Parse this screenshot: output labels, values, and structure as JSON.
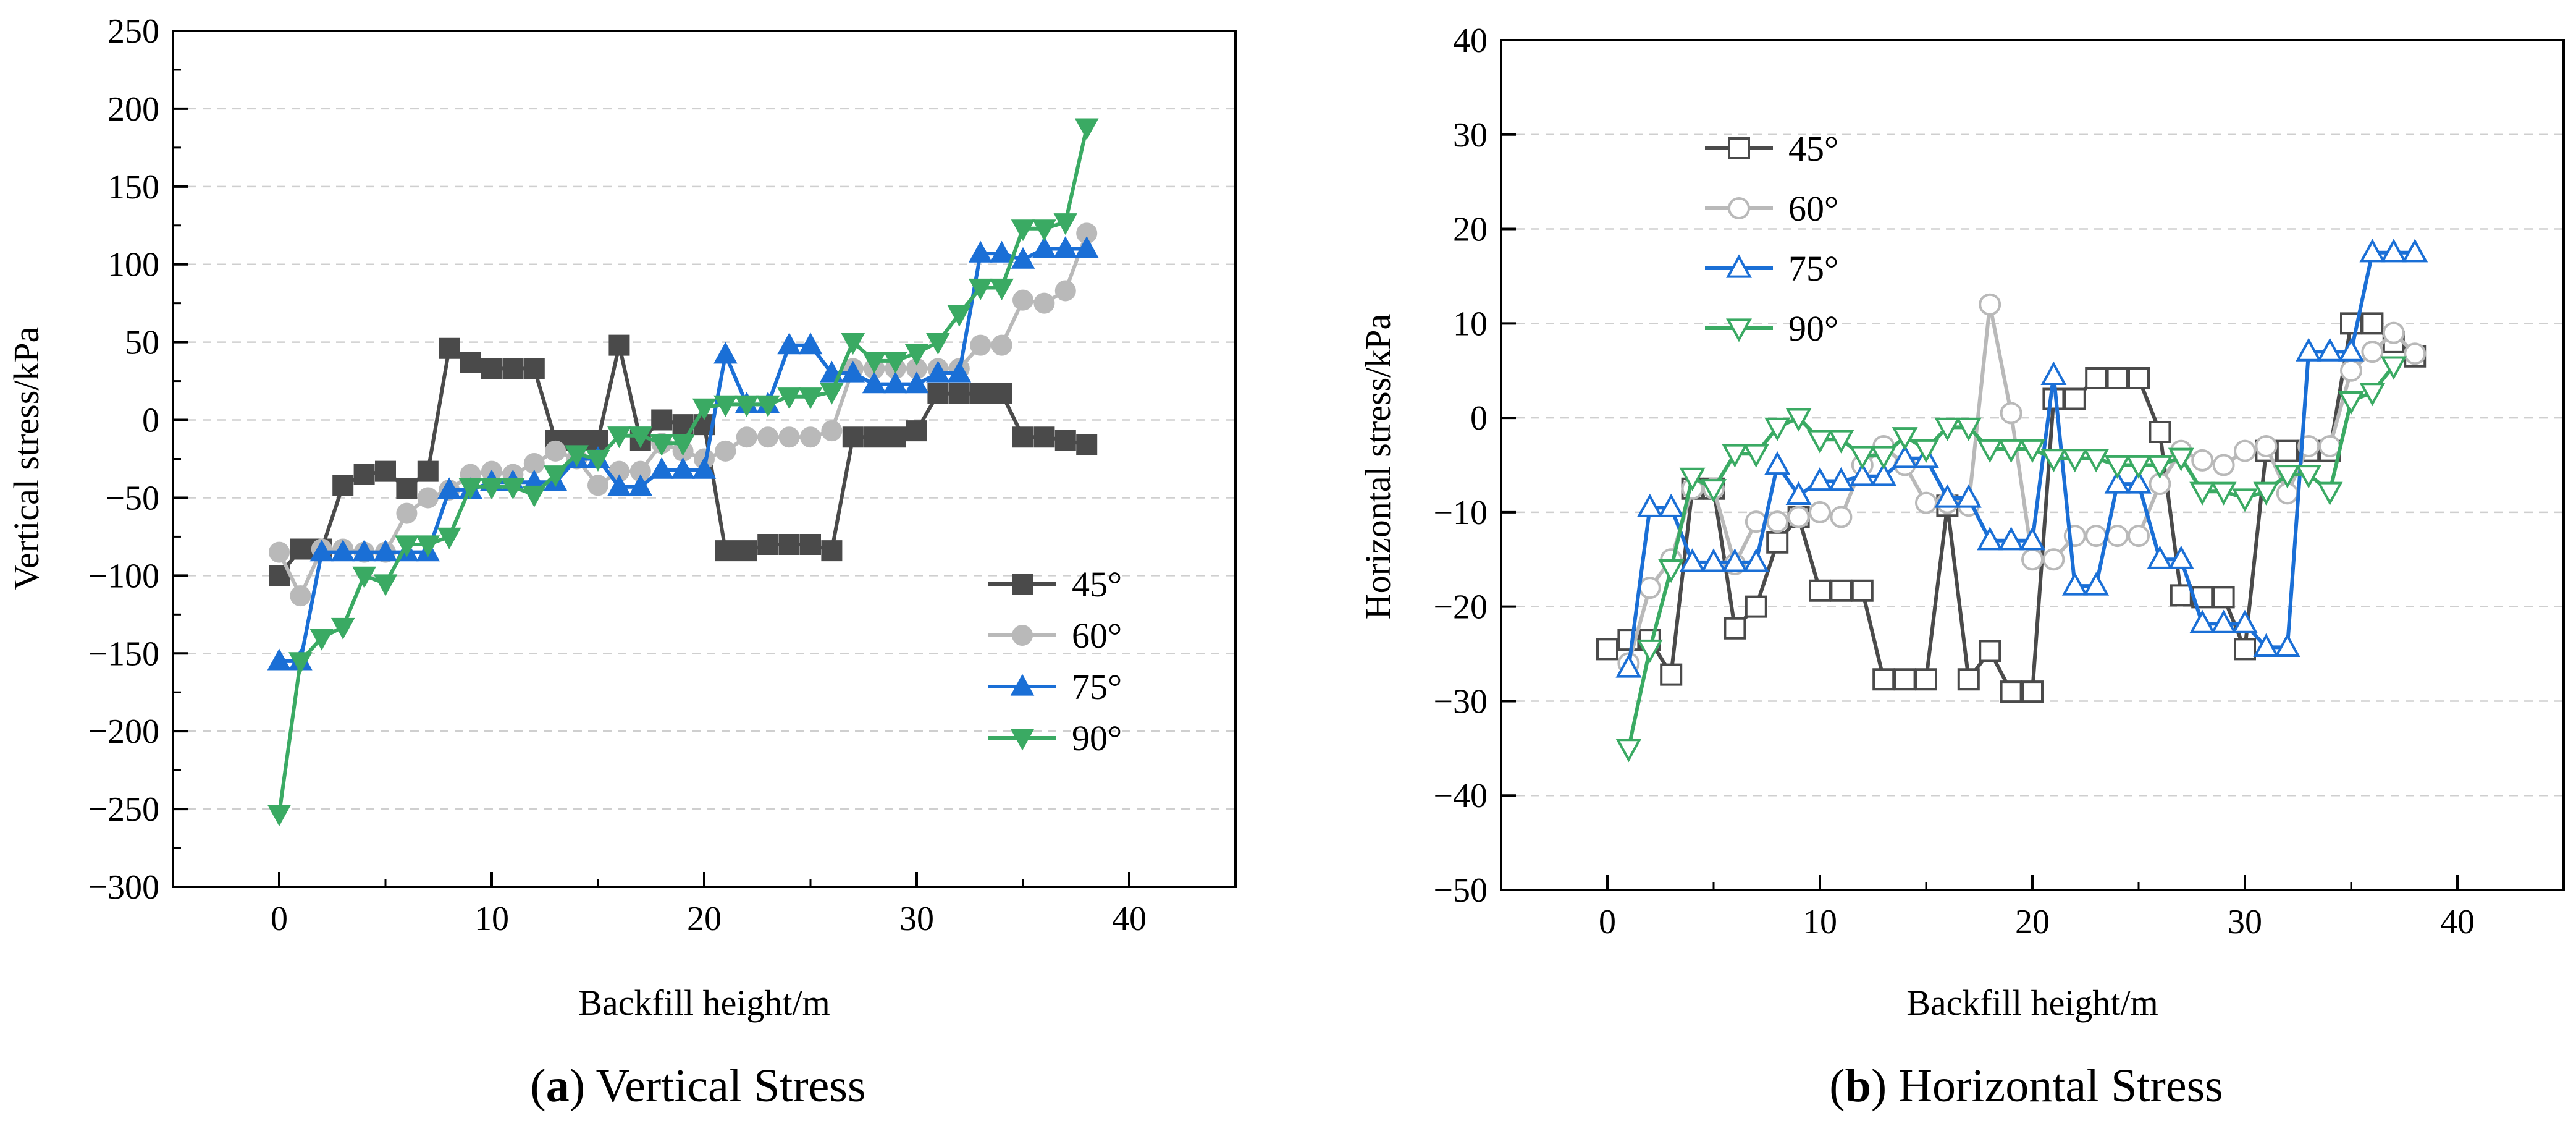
{
  "chart_data": [
    {
      "type": "line",
      "title": "Vertical Stress",
      "caption_letter": "a",
      "xlabel": "Backfill height/m",
      "ylabel": "Vertical stress/kPa",
      "xlim": [
        -5,
        45
      ],
      "ylim": [
        -300,
        250
      ],
      "xticks": [
        "0",
        "10",
        "20",
        "30",
        "40"
      ],
      "yticks": [
        "−300",
        "−250",
        "−200",
        "−150",
        "−100",
        "−50",
        "0",
        "50",
        "100",
        "150",
        "200",
        "250"
      ],
      "legend_position": "bottom-right",
      "x": [
        0,
        1,
        2,
        3,
        4,
        5,
        6,
        7,
        8,
        9,
        10,
        11,
        12,
        13,
        14,
        15,
        16,
        17,
        18,
        19,
        20,
        21,
        22,
        23,
        24,
        25,
        26,
        27,
        28,
        29,
        30,
        31,
        32,
        33,
        34,
        35,
        36,
        37,
        38
      ],
      "series": [
        {
          "name": "45°",
          "color": "#4a4a4a",
          "marker": "square",
          "filled": true,
          "values": [
            -100,
            -83,
            -83,
            -42,
            -35,
            -33,
            -44,
            -33,
            46,
            37,
            33,
            33,
            33,
            -13,
            -13,
            -13,
            48,
            -13,
            0,
            -3,
            -3,
            -84,
            -84,
            -80,
            -80,
            -80,
            -84,
            -11,
            -11,
            -11,
            -7,
            17,
            17,
            17,
            17,
            -11,
            -11,
            -13,
            -16
          ]
        },
        {
          "name": "60°",
          "color": "#b9b9b9",
          "marker": "circle",
          "filled": true,
          "values": [
            -85,
            -113,
            -83,
            -83,
            -85,
            -85,
            -60,
            -50,
            -45,
            -35,
            -33,
            -35,
            -28,
            -20,
            -25,
            -42,
            -33,
            -33,
            -15,
            -20,
            -25,
            -20,
            -11,
            -11,
            -11,
            -11,
            -7,
            33,
            33,
            33,
            33,
            33,
            33,
            48,
            48,
            77,
            75,
            83,
            120
          ]
        },
        {
          "name": "75°",
          "color": "#1a6fd6",
          "marker": "triangle-up",
          "filled": true,
          "values": [
            -155,
            -155,
            -85,
            -85,
            -85,
            -85,
            -85,
            -85,
            -45,
            -45,
            -40,
            -40,
            -40,
            -40,
            -25,
            -25,
            -43,
            -43,
            -32,
            -32,
            -32,
            42,
            10,
            10,
            48,
            48,
            30,
            30,
            23,
            23,
            23,
            30,
            30,
            107,
            107,
            103,
            110,
            110,
            110
          ]
        },
        {
          "name": "90°",
          "color": "#3aaa63",
          "marker": "triangle-down",
          "filled": true,
          "values": [
            -253,
            -155,
            -140,
            -133,
            -100,
            -105,
            -80,
            -80,
            -75,
            -43,
            -43,
            -43,
            -48,
            -35,
            -22,
            -25,
            -10,
            -10,
            -15,
            -15,
            8,
            10,
            10,
            10,
            15,
            15,
            18,
            50,
            38,
            38,
            43,
            50,
            68,
            85,
            85,
            123,
            123,
            127,
            188
          ]
        }
      ]
    },
    {
      "type": "line",
      "title": "Horizontal Stress",
      "caption_letter": "b",
      "xlabel": "Backfill height/m",
      "ylabel": "Horizontal stress/kPa",
      "xlim": [
        -5,
        45
      ],
      "ylim": [
        -50,
        40
      ],
      "xticks": [
        "0",
        "10",
        "20",
        "30",
        "40"
      ],
      "yticks": [
        "−50",
        "−40",
        "−30",
        "−20",
        "−10",
        "0",
        "10",
        "20",
        "30",
        "40"
      ],
      "legend_position": "top-left",
      "x": [
        0,
        1,
        2,
        3,
        4,
        5,
        6,
        7,
        8,
        9,
        10,
        11,
        12,
        13,
        14,
        15,
        16,
        17,
        18,
        19,
        20,
        21,
        22,
        23,
        24,
        25,
        26,
        27,
        28,
        29,
        30,
        31,
        32,
        33,
        34,
        35,
        36,
        37,
        38
      ],
      "series": [
        {
          "name": "45°",
          "color": "#4a4a4a",
          "marker": "square",
          "filled": false,
          "values": [
            -24.5,
            -23.5,
            -23.5,
            -27.2,
            -7.5,
            -7.5,
            -22.3,
            -20,
            -13.2,
            -10.5,
            -18.3,
            -18.3,
            -18.3,
            -27.7,
            -27.7,
            -27.7,
            -9.3,
            -27.7,
            -24.7,
            -29,
            -29,
            2,
            2,
            4.2,
            4.2,
            4.2,
            -1.5,
            -18.8,
            -19,
            -19,
            -24.5,
            -3.5,
            -3.5,
            -3.5,
            -3.5,
            10,
            10,
            8,
            6.5
          ]
        },
        {
          "name": "60°",
          "color": "#b9b9b9",
          "marker": "circle",
          "filled": false,
          "values": [
            null,
            -26,
            -18,
            -15,
            -7.5,
            -7.5,
            -15.5,
            -11,
            -11,
            -10.5,
            -10,
            -10.5,
            -5,
            -3,
            -5,
            -9,
            -9,
            -9.3,
            12,
            0.5,
            -15,
            -15,
            -12.5,
            -12.5,
            -12.5,
            -12.5,
            -7,
            -3.5,
            -4.5,
            -5,
            -3.5,
            -3,
            -8,
            -3,
            -3,
            5,
            7,
            9,
            6.8
          ]
        },
        {
          "name": "75°",
          "color": "#1a6fd6",
          "marker": "triangle-up",
          "filled": false,
          "values": [
            null,
            -26.5,
            -9.5,
            -9.5,
            -15.3,
            -15.3,
            -15.3,
            -15.3,
            -5,
            -8.2,
            -6.7,
            -6.7,
            -6.2,
            -6.2,
            -4.3,
            -4.3,
            -8.5,
            -8.5,
            -13,
            -13,
            -13,
            4.5,
            -17.8,
            -17.8,
            -7,
            -7,
            -15,
            -15,
            -21.8,
            -21.8,
            -21.8,
            -24.3,
            -24.3,
            7,
            7,
            7,
            17.5,
            17.5,
            17.5
          ]
        },
        {
          "name": "90°",
          "color": "#3aaa63",
          "marker": "triangle-down",
          "filled": false,
          "values": [
            null,
            -35,
            -24.5,
            -16,
            -6.3,
            -7.5,
            -3.8,
            -3.8,
            -1,
            0,
            -2.3,
            -2.3,
            -4,
            -4,
            -2,
            -3.3,
            -1,
            -1,
            -3.3,
            -3.3,
            -3.3,
            -4.3,
            -4.3,
            -4.3,
            -5,
            -5,
            -5,
            -4.2,
            -7.8,
            -7.8,
            -8.5,
            -7.8,
            -6,
            -6,
            -7.8,
            1.8,
            2.7,
            5.5,
            null
          ]
        }
      ]
    }
  ]
}
